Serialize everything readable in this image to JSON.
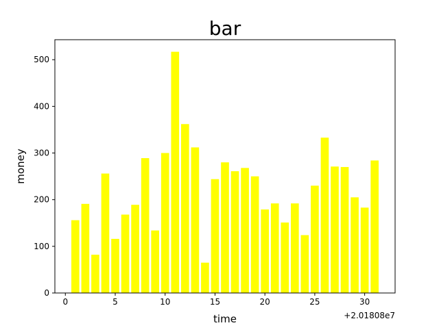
{
  "chart_data": {
    "type": "bar",
    "title": "bar",
    "xlabel": "time",
    "ylabel": "money",
    "x_offset_label": "+2.01808e7",
    "x": [
      1,
      2,
      3,
      4,
      5,
      6,
      7,
      8,
      9,
      10,
      11,
      12,
      13,
      14,
      15,
      16,
      17,
      18,
      19,
      20,
      21,
      22,
      23,
      24,
      25,
      26,
      27,
      28,
      29,
      30,
      31
    ],
    "values": [
      156,
      191,
      82,
      256,
      116,
      168,
      189,
      289,
      134,
      300,
      517,
      362,
      312,
      65,
      244,
      280,
      261,
      268,
      250,
      179,
      192,
      151,
      192,
      124,
      230,
      333,
      271,
      270,
      205,
      183,
      284
    ],
    "xlim": [
      -1.05,
      33.05
    ],
    "ylim": [
      0,
      542.85
    ],
    "xticks": [
      0,
      5,
      10,
      15,
      20,
      25,
      30
    ],
    "yticks": [
      0,
      100,
      200,
      300,
      400,
      500
    ],
    "bar_color": "#ffff00",
    "grid": false
  }
}
